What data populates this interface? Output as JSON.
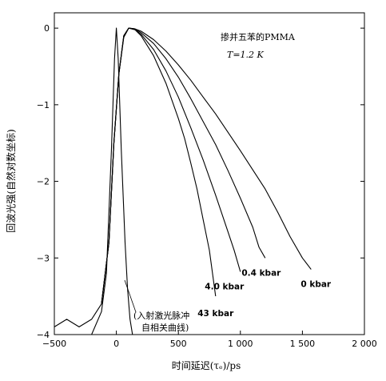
{
  "chart_data": {
    "type": "line",
    "title": "",
    "xlabel": "时间延迟(τₑ)/ps",
    "ylabel": "回波光强(自然对数坐标)",
    "xlim": [
      -500,
      2000
    ],
    "ylim": [
      -4,
      0.2
    ],
    "x_ticks": [
      -500,
      0,
      500,
      1000,
      1500,
      2000
    ],
    "x_tick_labels": [
      "−500",
      "0",
      "500",
      "1 000",
      "1 500",
      "2 000"
    ],
    "y_ticks": [
      0,
      -1,
      -2,
      -3,
      -4
    ],
    "y_tick_labels": [
      "0",
      "−1",
      "−2",
      "−3",
      "−4"
    ],
    "grid": false,
    "annotations": {
      "sample": "掺并五苯的PMMA",
      "temperature": "T=1.2 K",
      "laser_note_line1": "(入射激光脉冲",
      "laser_note_line2": "自相关曲线)"
    },
    "series": [
      {
        "label": "0 kbar",
        "x": [
          -500,
          -400,
          -300,
          -200,
          -120,
          -60,
          -20,
          20,
          60,
          100,
          150,
          200,
          300,
          400,
          500,
          600,
          700,
          800,
          900,
          1000,
          1100,
          1200,
          1300,
          1400,
          1500,
          1570
        ],
        "y": [
          -3.9,
          -3.8,
          -3.9,
          -3.8,
          -3.6,
          -2.8,
          -1.5,
          -0.6,
          -0.12,
          0,
          -0.01,
          -0.04,
          -0.15,
          -0.3,
          -0.48,
          -0.68,
          -0.9,
          -1.12,
          -1.36,
          -1.6,
          -1.85,
          -2.1,
          -2.4,
          -2.72,
          -3.0,
          -3.15
        ]
      },
      {
        "label": "0.4 kbar",
        "x": [
          -120,
          -60,
          -20,
          20,
          60,
          100,
          150,
          200,
          300,
          400,
          500,
          600,
          700,
          800,
          900,
          1000,
          1100,
          1150,
          1200
        ],
        "y": [
          -3.6,
          -2.8,
          -1.5,
          -0.6,
          -0.1,
          0,
          -0.01,
          -0.06,
          -0.2,
          -0.4,
          -0.64,
          -0.92,
          -1.22,
          -1.52,
          -1.86,
          -2.22,
          -2.6,
          -2.86,
          -3.0
        ]
      },
      {
        "label": "4.0 kbar",
        "x": [
          -120,
          -60,
          -20,
          20,
          60,
          100,
          150,
          200,
          300,
          400,
          500,
          600,
          700,
          800,
          900,
          950,
          1000
        ],
        "y": [
          -3.6,
          -2.8,
          -1.5,
          -0.6,
          -0.1,
          0,
          -0.02,
          -0.08,
          -0.28,
          -0.56,
          -0.9,
          -1.3,
          -1.72,
          -2.18,
          -2.66,
          -2.9,
          -3.18
        ]
      },
      {
        "label": "43 kbar",
        "x": [
          -120,
          -60,
          -20,
          20,
          60,
          100,
          150,
          200,
          300,
          400,
          500,
          550,
          600,
          650,
          700,
          750,
          800
        ],
        "y": [
          -3.6,
          -2.8,
          -1.5,
          -0.6,
          -0.1,
          0,
          -0.02,
          -0.1,
          -0.36,
          -0.72,
          -1.18,
          -1.44,
          -1.76,
          -2.1,
          -2.5,
          -2.9,
          -3.5
        ]
      },
      {
        "label": "laser autocorrelation",
        "x": [
          -400,
          -200,
          -120,
          -80,
          -40,
          -15,
          0,
          15,
          40,
          70,
          90,
          110,
          130
        ],
        "y": [
          -4,
          -4,
          -3.7,
          -3.2,
          -1.6,
          -0.4,
          0,
          -0.4,
          -1.6,
          -2.8,
          -3.4,
          -3.8,
          -4
        ]
      }
    ]
  }
}
